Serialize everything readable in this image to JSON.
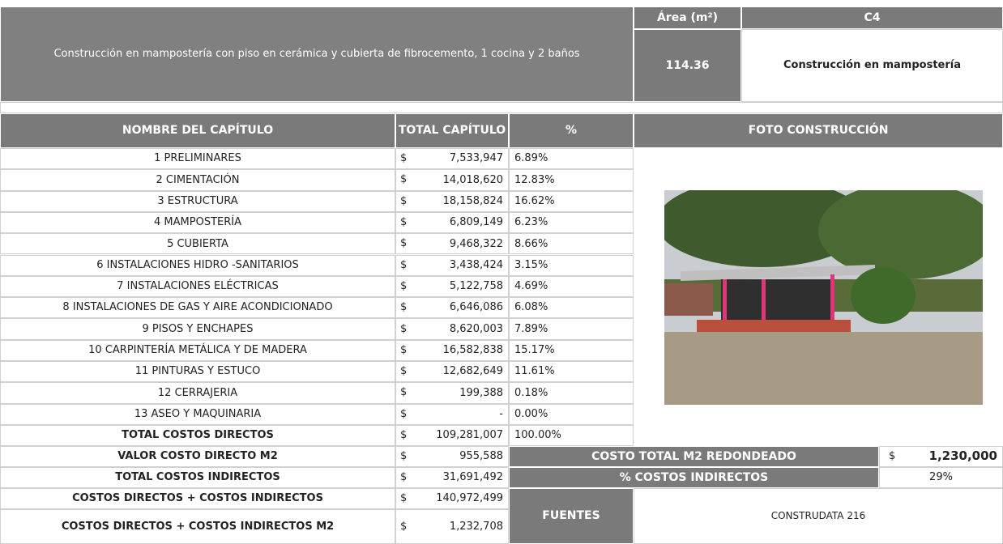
{
  "header": {
    "description": "Construcción en mampostería con piso en cerámica y cubierta de fibrocemento, 1 cocina y 2 baños",
    "area_label": "Área (m²)",
    "area_value": "114.36",
    "code": "C4",
    "construction_type": "Construcción en mampostería"
  },
  "currency": "$",
  "table": {
    "columns": [
      "NOMBRE DEL CAPÍTULO",
      "TOTAL CAPÍTULO",
      "%",
      "FOTO CONSTRUCCIÓN"
    ],
    "rows": [
      [
        "1  PRELIMINARES",
        "7,533,947",
        "6.89%"
      ],
      [
        "2 CIMENTACIÓN",
        "14,018,620",
        "12.83%"
      ],
      [
        "3 ESTRUCTURA",
        "18,158,824",
        "16.62%"
      ],
      [
        "4 MAMPOSTERÍA",
        "6,809,149",
        "6.23%"
      ],
      [
        "5 CUBIERTA",
        "9,468,322",
        "8.66%"
      ],
      [
        "6 INSTALACIONES HIDRO -SANITARIOS",
        "3,438,424",
        "3.15%"
      ],
      [
        "7 INSTALACIONES ELÉCTRICAS",
        "5,122,758",
        "4.69%"
      ],
      [
        "8 INSTALACIONES DE GAS Y AIRE ACONDICIONADO",
        "6,646,086",
        "6.08%"
      ],
      [
        "9 PISOS Y ENCHAPES",
        "8,620,003",
        "7.89%"
      ],
      [
        "10 CARPINTERÍA METÁLICA Y DE MADERA",
        "16,582,838",
        "15.17%"
      ],
      [
        "11 PINTURAS Y ESTUCO",
        "12,682,649",
        "11.61%"
      ],
      [
        "12 CERRAJERIA",
        "199,388",
        "0.18%"
      ],
      [
        "13 ASEO Y MAQUINARIA",
        "-",
        "0.00%"
      ]
    ],
    "total": [
      "TOTAL COSTOS DIRECTOS",
      "109,281,007",
      "100.00%"
    ]
  },
  "summary": [
    [
      "VALOR COSTO DIRECTO M2",
      "955,588"
    ],
    [
      "TOTAL COSTOS INDIRECTOS",
      "31,691,492"
    ],
    [
      "COSTOS DIRECTOS + COSTOS INDIRECTOS",
      "140,972,499"
    ],
    [
      "COSTOS DIRECTOS + COSTOS INDIRECTOS M2",
      "1,232,708"
    ]
  ],
  "rounded": {
    "label": "COSTO TOTAL M2 REDONDEADO",
    "value": "1,230,000"
  },
  "indirect_pct": {
    "label": "% COSTOS INDIRECTOS",
    "value": "29%"
  },
  "sources": {
    "label": "FUENTES",
    "value": "CONSTRUDATA 216"
  }
}
